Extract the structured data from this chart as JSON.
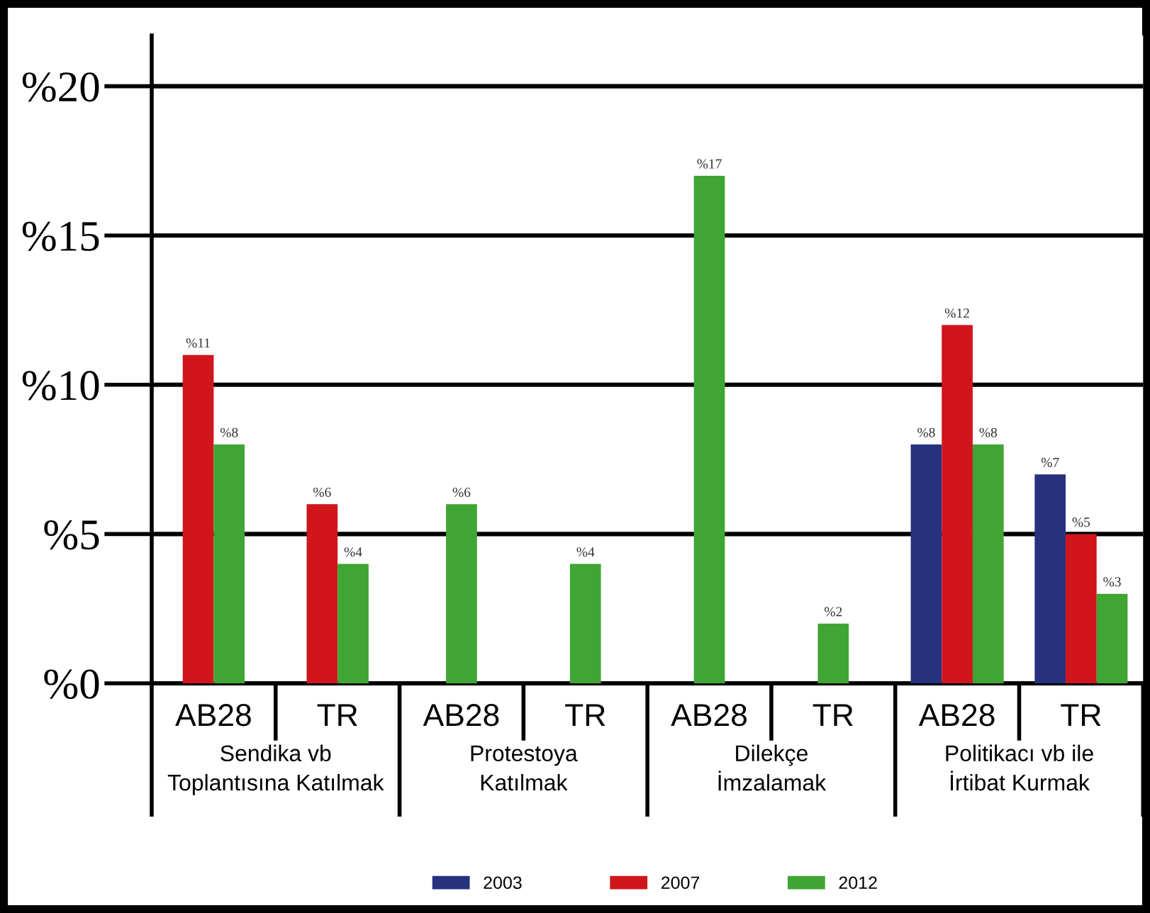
{
  "chart_data": {
    "type": "bar",
    "categories": [
      "AB28",
      "TR",
      "AB28",
      "TR",
      "AB28",
      "TR",
      "AB28",
      "TR"
    ],
    "series": [
      {
        "name": "2003",
        "color": "#27327f",
        "values": [
          null,
          null,
          null,
          null,
          null,
          null,
          8,
          7
        ],
        "value_labels": [
          null,
          null,
          null,
          null,
          null,
          null,
          "%8",
          "%7"
        ]
      },
      {
        "name": "2007",
        "color": "#d0161b",
        "values": [
          11,
          6,
          null,
          null,
          null,
          null,
          12,
          5
        ],
        "value_labels": [
          "%11",
          "%6",
          null,
          null,
          null,
          null,
          "%12",
          "%5"
        ]
      },
      {
        "name": "2012",
        "color": "#3fa535",
        "values": [
          8,
          4,
          6,
          4,
          17,
          2,
          8,
          3
        ],
        "value_labels": [
          "%8",
          "%4",
          "%6",
          "%4",
          "%17",
          "%2",
          "%8",
          "%3"
        ]
      }
    ],
    "annotations": [
      "Sendika vb\nToplantısına Katılmak",
      "Protestoya\nKatılmak",
      "Dilekçe\nİmzalamak",
      "Politikacı vb ile\nİrtibat Kurmak"
    ],
    "ylim": [
      0,
      21.7
    ],
    "yticks": [
      {
        "value": 0,
        "label": "%0"
      },
      {
        "value": 5,
        "label": "%5"
      },
      {
        "value": 10,
        "label": "%10"
      },
      {
        "value": 15,
        "label": "%15"
      },
      {
        "value": 20,
        "label": "%20"
      }
    ],
    "grid": "y",
    "legend": "bottom"
  }
}
